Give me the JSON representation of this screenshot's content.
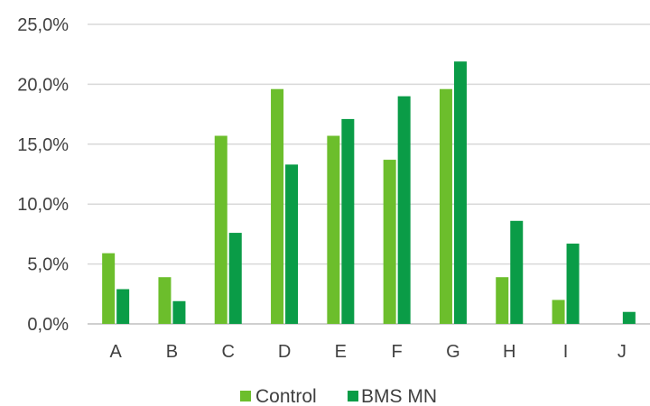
{
  "chart_data": {
    "type": "bar",
    "categories": [
      "A",
      "B",
      "C",
      "D",
      "E",
      "F",
      "G",
      "H",
      "I",
      "J"
    ],
    "series": [
      {
        "name": "Control",
        "color": "#6cbe2c",
        "values": [
          5.9,
          3.9,
          15.7,
          19.6,
          15.7,
          13.7,
          19.6,
          3.9,
          2.0,
          0.0
        ]
      },
      {
        "name": "BMS MN",
        "color": "#0a9c47",
        "values": [
          2.9,
          1.9,
          7.6,
          13.3,
          17.1,
          19.0,
          21.9,
          8.6,
          6.7,
          1.0
        ]
      }
    ],
    "y_ticks": [
      "0,0%",
      "5,0%",
      "10,0%",
      "15,0%",
      "20,0%",
      "25,0%"
    ],
    "ylim": [
      0,
      25
    ],
    "grid": true,
    "legend_position": "bottom",
    "gridline_color": "#d9d9d9",
    "axis_color": "#bfbfbf"
  }
}
